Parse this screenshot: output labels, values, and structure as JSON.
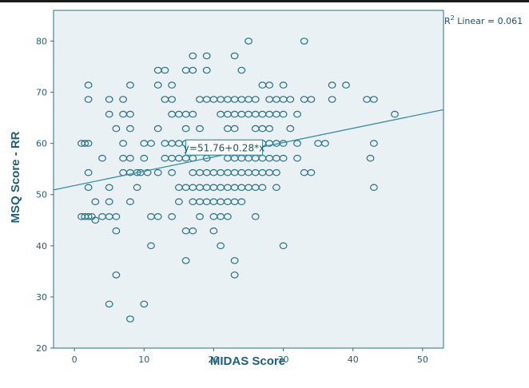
{
  "chart_data": {
    "type": "scatter",
    "xlabel": "MIDAS Score",
    "ylabel": "MSQ Score - RR",
    "xlim": [
      -3,
      53
    ],
    "ylim": [
      20,
      86
    ],
    "xticks": [
      0,
      10,
      20,
      30,
      40,
      50
    ],
    "yticks": [
      20,
      30,
      40,
      50,
      60,
      70,
      80
    ],
    "x_tick_labels": [
      "0",
      "10",
      "20",
      "30",
      "40",
      "50"
    ],
    "y_tick_labels": [
      "20",
      "30",
      "40",
      "50",
      "60",
      "70",
      "80"
    ],
    "fit_line": {
      "intercept": 51.76,
      "slope": 0.28,
      "equation_label": "y=51.76+0.28*x",
      "equation_label_at": [
        21.5,
        58.5
      ]
    },
    "r2_label": {
      "prefix": "R",
      "sup": "2",
      "text": " Linear = 0.061"
    },
    "colors": {
      "plot_bg": "#e9f1f5",
      "marker": "#2a6f86",
      "line": "#3c8ca3",
      "text": "#1f5f78"
    },
    "points": [
      [
        1,
        60
      ],
      [
        1.5,
        60
      ],
      [
        2,
        60
      ],
      [
        1,
        45.7
      ],
      [
        1.5,
        45.7
      ],
      [
        2,
        45.7
      ],
      [
        2,
        54.3
      ],
      [
        2,
        51.4
      ],
      [
        2,
        71.4
      ],
      [
        2,
        68.6
      ],
      [
        2.5,
        45.7
      ],
      [
        3,
        48.6
      ],
      [
        3,
        45
      ],
      [
        4,
        57.1
      ],
      [
        4,
        45.7
      ],
      [
        5,
        68.6
      ],
      [
        5,
        65.7
      ],
      [
        5,
        51.4
      ],
      [
        5,
        48.6
      ],
      [
        5,
        45.7
      ],
      [
        5,
        28.6
      ],
      [
        6,
        62.9
      ],
      [
        6,
        45.7
      ],
      [
        6,
        42.9
      ],
      [
        6,
        34.3
      ],
      [
        7,
        68.6
      ],
      [
        7,
        65.7
      ],
      [
        7,
        60
      ],
      [
        7,
        57.1
      ],
      [
        7,
        54.3
      ],
      [
        8,
        71.4
      ],
      [
        8,
        65.7
      ],
      [
        8,
        62.9
      ],
      [
        8,
        57.1
      ],
      [
        8,
        54.3
      ],
      [
        8,
        48.6
      ],
      [
        8,
        25.7
      ],
      [
        9,
        54.3
      ],
      [
        9,
        51.4
      ],
      [
        9.5,
        54.3
      ],
      [
        10,
        60
      ],
      [
        10,
        57.1
      ],
      [
        10,
        28.6
      ],
      [
        10.5,
        54.3
      ],
      [
        11,
        60
      ],
      [
        11,
        45.7
      ],
      [
        11,
        40
      ],
      [
        12,
        74.3
      ],
      [
        12,
        71.4
      ],
      [
        12,
        62.9
      ],
      [
        12,
        54.3
      ],
      [
        12,
        45.7
      ],
      [
        13,
        74.3
      ],
      [
        13,
        68.6
      ],
      [
        13,
        60
      ],
      [
        13,
        57.1
      ],
      [
        14,
        71.4
      ],
      [
        14,
        68.6
      ],
      [
        14,
        65.7
      ],
      [
        14,
        60
      ],
      [
        14,
        57.1
      ],
      [
        14,
        54.3
      ],
      [
        14,
        45.7
      ],
      [
        15,
        65.7
      ],
      [
        15,
        60
      ],
      [
        15,
        57.1
      ],
      [
        15,
        51.4
      ],
      [
        15,
        48.6
      ],
      [
        16,
        74.3
      ],
      [
        16,
        65.7
      ],
      [
        16,
        62.9
      ],
      [
        16,
        60
      ],
      [
        16,
        57.1
      ],
      [
        16,
        51.4
      ],
      [
        16,
        42.9
      ],
      [
        16,
        37.1
      ],
      [
        17,
        77.1
      ],
      [
        17,
        74.3
      ],
      [
        17,
        65.7
      ],
      [
        17,
        60
      ],
      [
        17,
        57.1
      ],
      [
        17,
        54.3
      ],
      [
        17,
        51.4
      ],
      [
        17,
        48.6
      ],
      [
        17,
        42.9
      ],
      [
        18,
        68.6
      ],
      [
        18,
        62.9
      ],
      [
        18,
        60
      ],
      [
        18,
        54.3
      ],
      [
        18,
        51.4
      ],
      [
        18,
        48.6
      ],
      [
        18,
        45.7
      ],
      [
        19,
        77.1
      ],
      [
        19,
        74.3
      ],
      [
        19,
        68.6
      ],
      [
        19,
        60
      ],
      [
        19,
        57.1
      ],
      [
        19,
        54.3
      ],
      [
        19,
        51.4
      ],
      [
        19,
        48.6
      ],
      [
        20,
        68.6
      ],
      [
        20,
        60
      ],
      [
        20,
        54.3
      ],
      [
        20,
        51.4
      ],
      [
        20,
        48.6
      ],
      [
        20,
        45.7
      ],
      [
        20,
        42.9
      ],
      [
        21,
        68.6
      ],
      [
        21,
        65.7
      ],
      [
        21,
        60
      ],
      [
        21,
        54.3
      ],
      [
        21,
        51.4
      ],
      [
        21,
        48.6
      ],
      [
        21,
        45.7
      ],
      [
        21,
        40
      ],
      [
        22,
        68.6
      ],
      [
        22,
        65.7
      ],
      [
        22,
        62.9
      ],
      [
        22,
        57.1
      ],
      [
        22,
        54.3
      ],
      [
        22,
        51.4
      ],
      [
        22,
        48.6
      ],
      [
        22,
        45.7
      ],
      [
        23,
        77.1
      ],
      [
        23,
        68.6
      ],
      [
        23,
        65.7
      ],
      [
        23,
        62.9
      ],
      [
        23,
        60
      ],
      [
        23,
        57.1
      ],
      [
        23,
        54.3
      ],
      [
        23,
        51.4
      ],
      [
        23,
        48.6
      ],
      [
        23,
        37.1
      ],
      [
        23,
        34.3
      ],
      [
        24,
        74.3
      ],
      [
        24,
        68.6
      ],
      [
        24,
        65.7
      ],
      [
        24,
        60
      ],
      [
        24,
        57.1
      ],
      [
        24,
        54.3
      ],
      [
        24,
        51.4
      ],
      [
        24,
        48.6
      ],
      [
        25,
        80
      ],
      [
        25,
        68.6
      ],
      [
        25,
        65.7
      ],
      [
        25,
        60
      ],
      [
        25,
        57.1
      ],
      [
        25,
        54.3
      ],
      [
        25,
        51.4
      ],
      [
        26,
        68.6
      ],
      [
        26,
        65.7
      ],
      [
        26,
        62.9
      ],
      [
        26,
        60
      ],
      [
        26,
        57.1
      ],
      [
        26,
        54.3
      ],
      [
        26,
        51.4
      ],
      [
        26,
        45.7
      ],
      [
        27,
        71.4
      ],
      [
        27,
        65.7
      ],
      [
        27,
        62.9
      ],
      [
        27,
        60
      ],
      [
        27,
        57.1
      ],
      [
        27,
        54.3
      ],
      [
        27,
        51.4
      ],
      [
        28,
        71.4
      ],
      [
        28,
        68.6
      ],
      [
        28,
        65.7
      ],
      [
        28,
        62.9
      ],
      [
        28,
        60
      ],
      [
        28,
        57.1
      ],
      [
        28,
        54.3
      ],
      [
        29,
        68.6
      ],
      [
        29,
        65.7
      ],
      [
        29,
        60
      ],
      [
        29,
        57.1
      ],
      [
        29,
        54.3
      ],
      [
        29,
        51.4
      ],
      [
        30,
        71.4
      ],
      [
        30,
        68.6
      ],
      [
        30,
        65.7
      ],
      [
        30,
        60
      ],
      [
        30,
        57.1
      ],
      [
        30,
        40
      ],
      [
        31,
        68.6
      ],
      [
        31,
        62.9
      ],
      [
        32,
        65.7
      ],
      [
        32,
        60
      ],
      [
        32,
        57.1
      ],
      [
        33,
        80
      ],
      [
        33,
        68.6
      ],
      [
        33,
        54.3
      ],
      [
        34,
        68.6
      ],
      [
        34,
        54.3
      ],
      [
        35,
        60
      ],
      [
        36,
        60
      ],
      [
        37,
        71.4
      ],
      [
        37,
        68.6
      ],
      [
        39,
        71.4
      ],
      [
        42,
        68.6
      ],
      [
        42.5,
        57.1
      ],
      [
        43,
        68.6
      ],
      [
        43,
        60
      ],
      [
        43,
        51.4
      ],
      [
        46,
        65.7
      ]
    ]
  }
}
